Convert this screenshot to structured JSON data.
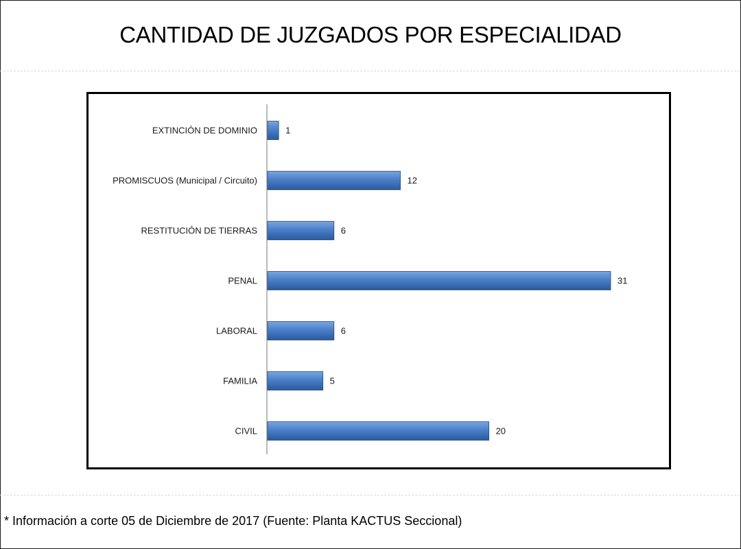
{
  "title": "CANTIDAD  DE JUZGADOS POR ESPECIALIDAD",
  "footnote": "* Información a corte 05 de Diciembre de 2017 (Fuente: Planta KACTUS Seccional)",
  "colors": {
    "bar_light": "#7aa6df",
    "bar_main": "#4a7fc9",
    "bar_dark": "#2a5a9e",
    "bar_stroke": "#1f4a87",
    "axis": "#8c8c8c"
  },
  "chart_data": {
    "type": "bar",
    "orientation": "horizontal",
    "title": "CANTIDAD  DE JUZGADOS POR ESPECIALIDAD",
    "xlabel": "",
    "ylabel": "",
    "categories": [
      "EXTINCIÓN DE DOMINIO",
      "PROMISCUOS (Municipal / Circuito)",
      "RESTITUCIÓN DE TIERRAS",
      "PENAL",
      "LABORAL",
      "FAMILIA",
      "CIVIL"
    ],
    "values": [
      1,
      12,
      6,
      31,
      6,
      5,
      20
    ],
    "xlim": [
      0,
      31
    ],
    "grid": false,
    "legend": "none",
    "data_labels": true
  }
}
